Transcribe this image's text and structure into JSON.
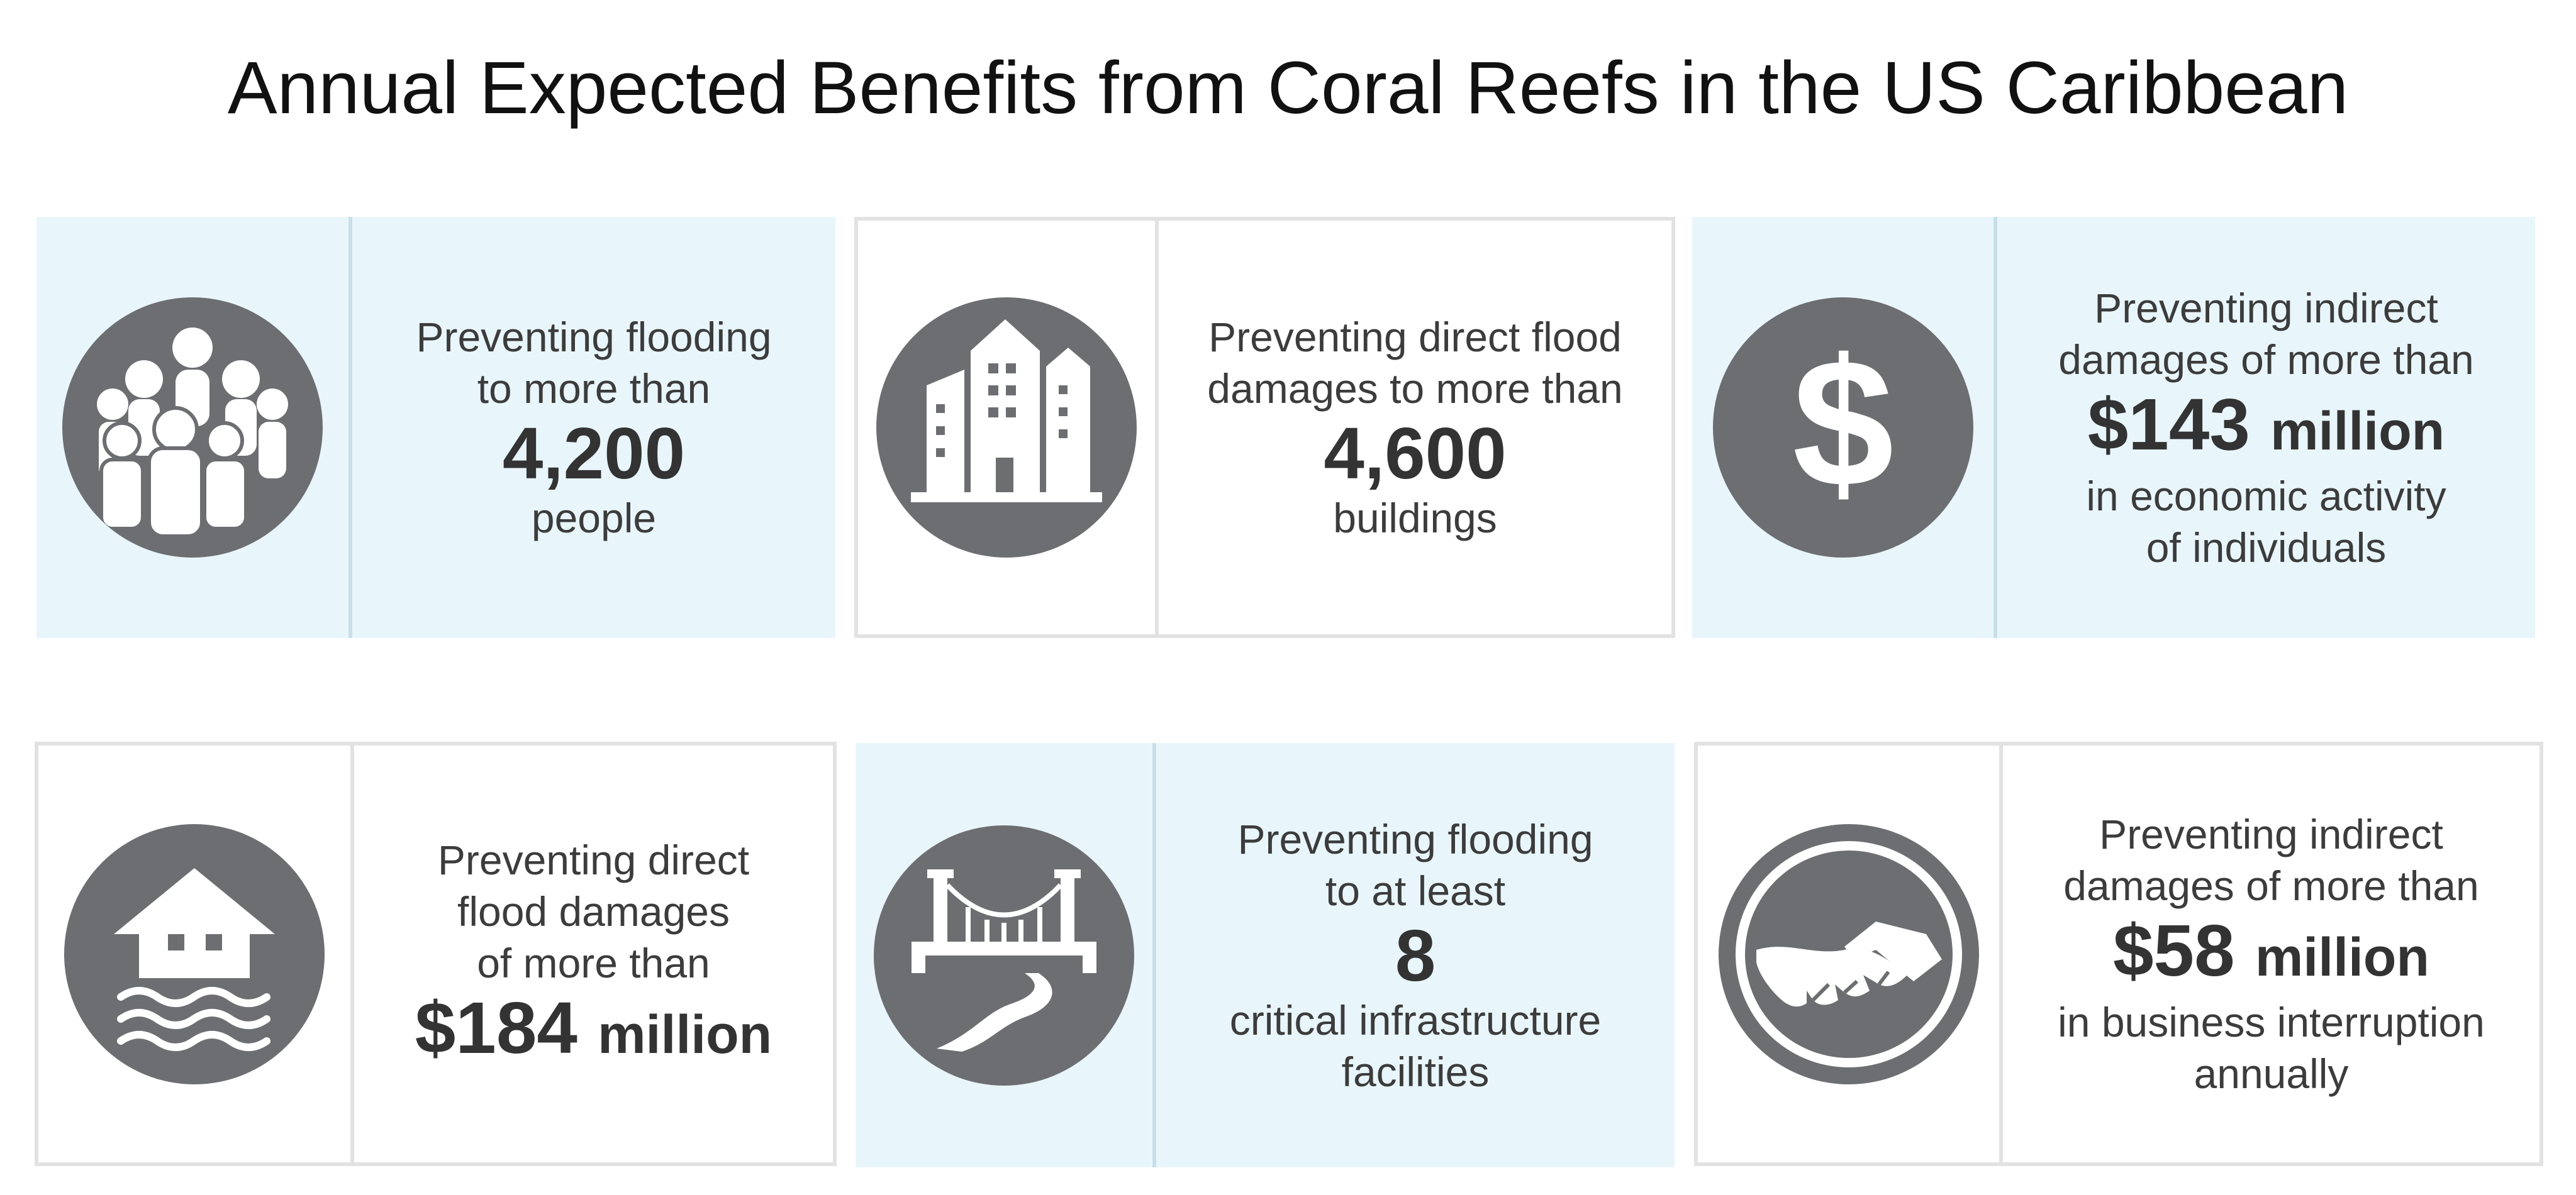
{
  "title": "Annual Expected Benefits from Coral Reefs in the US Caribbean",
  "colors": {
    "blue_card": "#e8f6fc",
    "icon_circle": "#6d6e71",
    "border": "#e2e2e2"
  },
  "cards": [
    {
      "icon": "people-group-icon",
      "theme": "blue",
      "before": [
        "Preventing flooding",
        "to more than"
      ],
      "value": "4,200",
      "unit": "",
      "after": [
        "people"
      ]
    },
    {
      "icon": "buildings-icon",
      "theme": "white",
      "before": [
        "Preventing direct flood",
        "damages to more than"
      ],
      "value": "4,600",
      "unit": "",
      "after": [
        "buildings"
      ]
    },
    {
      "icon": "dollar-sign-icon",
      "theme": "blue",
      "before": [
        "Preventing indirect",
        "damages of more than"
      ],
      "value": "$143",
      "unit": "million",
      "after": [
        "in economic activity",
        "of individuals"
      ]
    },
    {
      "icon": "flooded-house-icon",
      "theme": "white",
      "before": [
        "Preventing direct",
        "flood damages",
        "of more than"
      ],
      "value": "$184",
      "unit": "million",
      "after": []
    },
    {
      "icon": "bridge-road-icon",
      "theme": "blue",
      "before": [
        "Preventing flooding",
        "to at least"
      ],
      "value": "8",
      "unit": "",
      "after": [
        "critical infrastructure",
        "facilities"
      ]
    },
    {
      "icon": "handshake-icon",
      "theme": "white",
      "before": [
        "Preventing indirect",
        "damages of more than"
      ],
      "value": "$58",
      "unit": "million",
      "after": [
        "in business interruption",
        "annually"
      ]
    }
  ]
}
